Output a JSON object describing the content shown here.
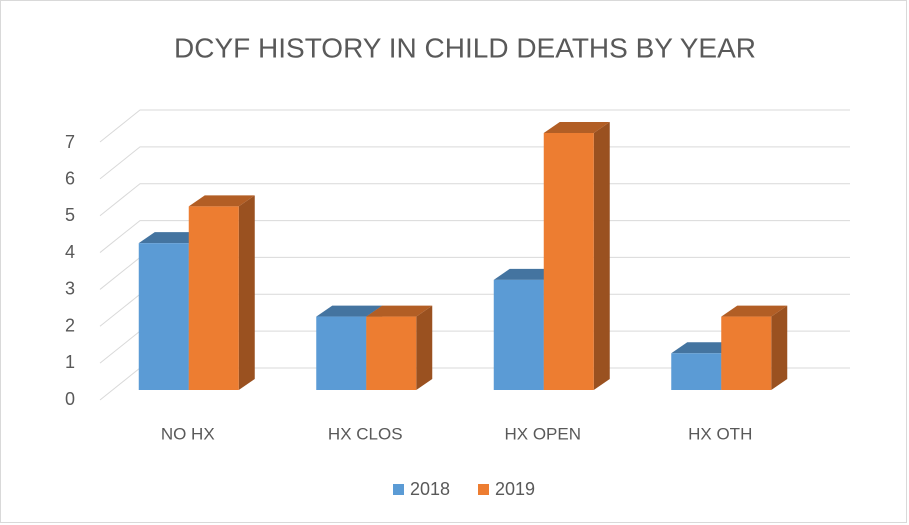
{
  "chart_data": {
    "type": "bar3d",
    "title": "DCYF HISTORY IN CHILD DEATHS BY YEAR",
    "categories": [
      "NO HX",
      "HX CLOS",
      "HX OPEN",
      "HX OTH"
    ],
    "series": [
      {
        "name": "2018",
        "color": "#5b9bd5",
        "values": [
          4,
          2,
          3,
          1
        ]
      },
      {
        "name": "2019",
        "color": "#ed7d31",
        "values": [
          5,
          2,
          7,
          2
        ]
      }
    ],
    "ylim": [
      0,
      7
    ],
    "yticks": [
      0,
      1,
      2,
      3,
      4,
      5,
      6,
      7
    ],
    "grid": true,
    "legend": "bottom"
  }
}
